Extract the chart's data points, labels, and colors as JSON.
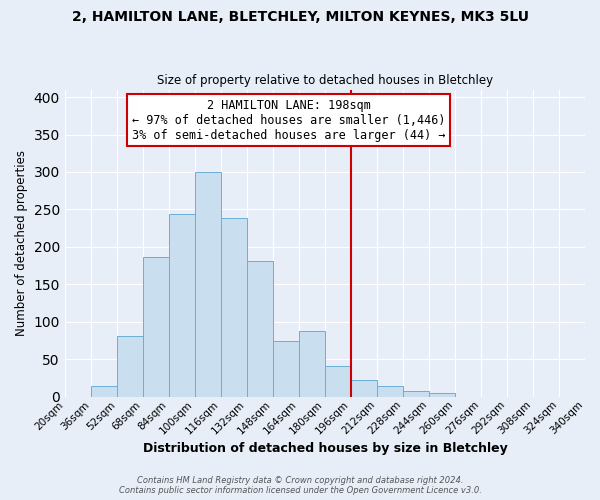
{
  "title_line1": "2, HAMILTON LANE, BLETCHLEY, MILTON KEYNES, MK3 5LU",
  "title_line2": "Size of property relative to detached houses in Bletchley",
  "xlabel": "Distribution of detached houses by size in Bletchley",
  "ylabel": "Number of detached properties",
  "bin_labels": [
    "20sqm",
    "36sqm",
    "52sqm",
    "68sqm",
    "84sqm",
    "100sqm",
    "116sqm",
    "132sqm",
    "148sqm",
    "164sqm",
    "180sqm",
    "196sqm",
    "212sqm",
    "228sqm",
    "244sqm",
    "260sqm",
    "276sqm",
    "292sqm",
    "308sqm",
    "324sqm",
    "340sqm"
  ],
  "bin_edges": [
    20,
    36,
    52,
    68,
    84,
    100,
    116,
    132,
    148,
    164,
    180,
    196,
    212,
    228,
    244,
    260,
    276,
    292,
    308,
    324,
    340
  ],
  "bar_heights": [
    0,
    15,
    81,
    186,
    244,
    300,
    239,
    181,
    75,
    88,
    41,
    22,
    14,
    8,
    5,
    0,
    0,
    0,
    0,
    0
  ],
  "bar_color": "#c9dff0",
  "bar_edge_color": "#6baed6",
  "vline_x": 196,
  "vline_color": "#cc0000",
  "ylim": [
    0,
    410
  ],
  "yticks": [
    0,
    50,
    100,
    150,
    200,
    250,
    300,
    350,
    400
  ],
  "annotation_title": "2 HAMILTON LANE: 198sqm",
  "annotation_line1": "← 97% of detached houses are smaller (1,446)",
  "annotation_line2": "3% of semi-detached houses are larger (44) →",
  "footer_line1": "Contains HM Land Registry data © Crown copyright and database right 2024.",
  "footer_line2": "Contains public sector information licensed under the Open Government Licence v3.0.",
  "background_color": "#e8eef8",
  "plot_background": "#e8eef8",
  "grid_color": "#ffffff"
}
